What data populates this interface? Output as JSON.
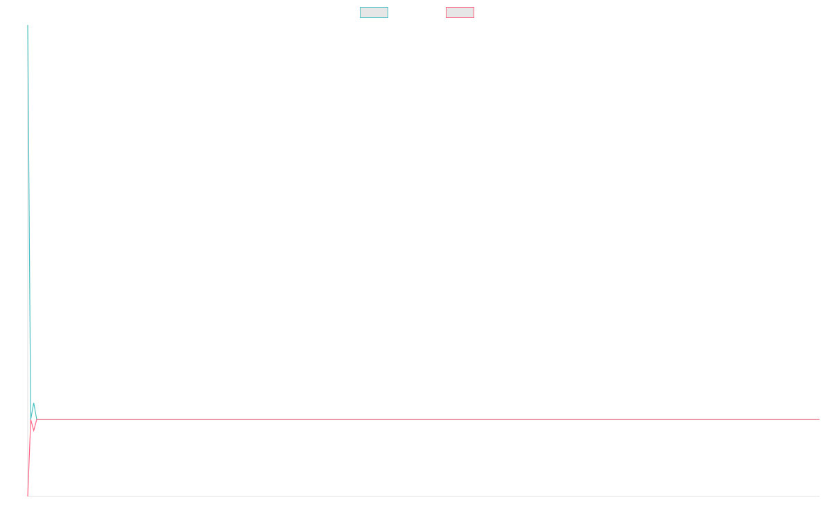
{
  "chart_data": {
    "type": "line",
    "x": [
      0,
      1,
      2,
      3,
      264
    ],
    "xlim": [
      0,
      264
    ],
    "ylim": [
      -1,
      5.125
    ],
    "legend": "top",
    "series": [
      {
        "color": "#4bc0c0",
        "values": [
          5.125,
          0,
          0.216,
          0,
          0
        ]
      },
      {
        "color": "#ff6384",
        "values": [
          -1,
          0,
          -0.144,
          0,
          0
        ]
      }
    ]
  }
}
